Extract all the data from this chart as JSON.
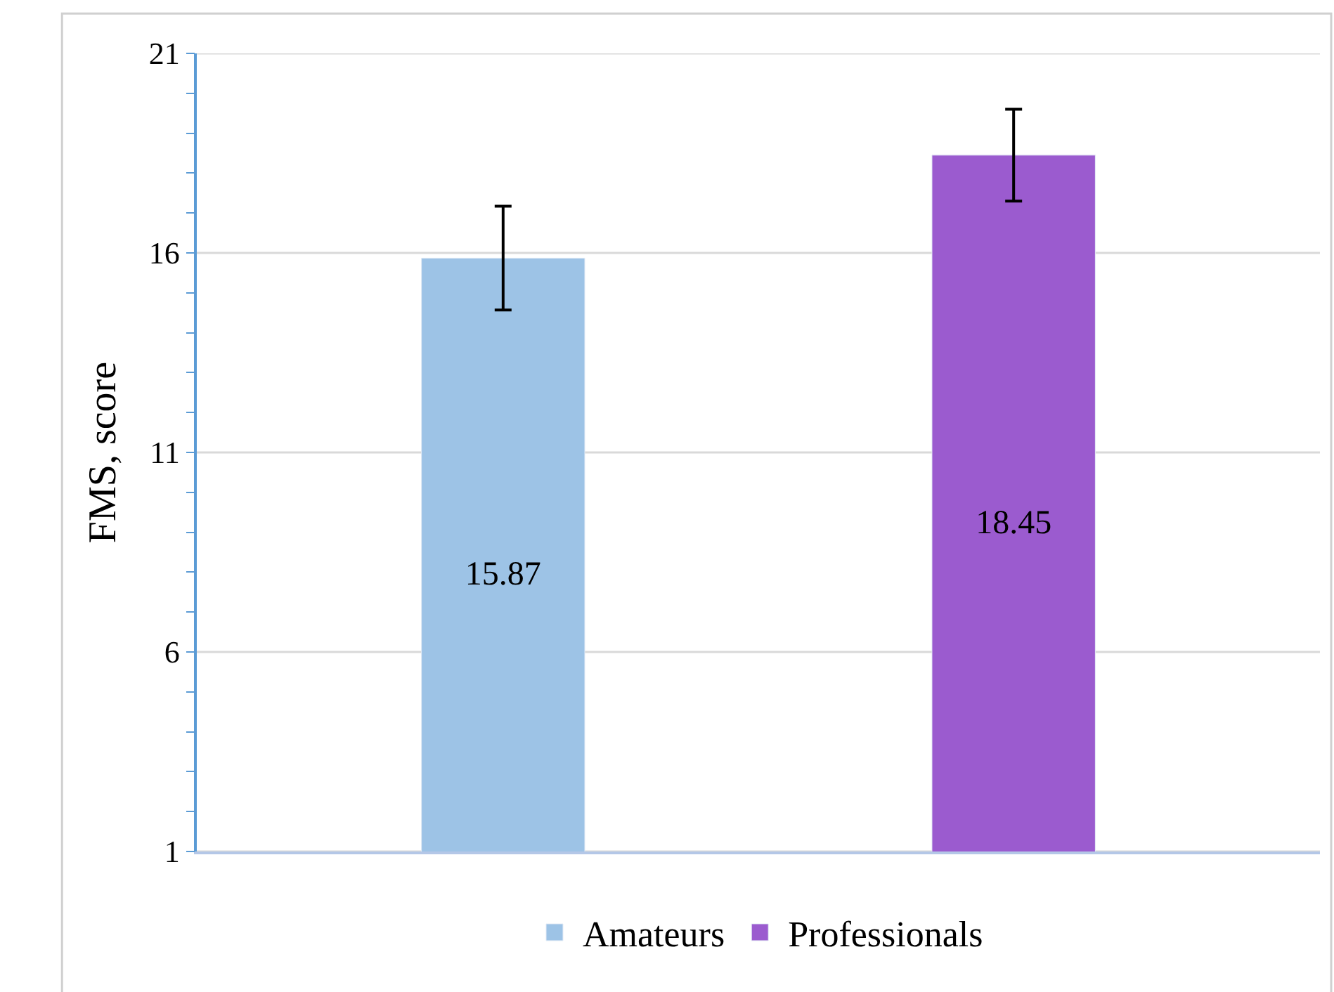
{
  "chart_data": {
    "type": "bar",
    "ylabel": "FMS, score",
    "categories": [
      null,
      null
    ],
    "series": [
      {
        "name": "Amateurs",
        "color": "#9dc3e6",
        "values": [
          15.87,
          null
        ],
        "errors": [
          1.3,
          null
        ]
      },
      {
        "name": "Professionals",
        "color": "#9b5bcf",
        "values": [
          null,
          18.45
        ],
        "errors": [
          null,
          1.15
        ]
      }
    ],
    "ylim": [
      1,
      21
    ],
    "yticks": [
      1,
      {
        "value": 2,
        "label": null
      },
      {
        "value": 3,
        "label": null
      },
      {
        "value": 4,
        "label": null
      },
      {
        "value": 5,
        "label": null
      },
      6,
      {
        "value": 7,
        "label": null
      },
      {
        "value": 8,
        "label": null
      },
      {
        "value": 9,
        "label": null
      },
      {
        "value": 10,
        "label": null
      },
      11,
      {
        "value": 12,
        "label": null
      },
      {
        "value": 13,
        "label": null
      },
      {
        "value": 14,
        "label": null
      },
      {
        "value": 15,
        "label": null
      },
      16,
      {
        "value": 17,
        "label": null
      },
      {
        "value": 18,
        "label": null
      },
      {
        "value": 19,
        "label": null
      },
      {
        "value": 20,
        "label": null
      },
      21
    ],
    "grid": "y",
    "legend": "bottom",
    "data_labels": true
  }
}
